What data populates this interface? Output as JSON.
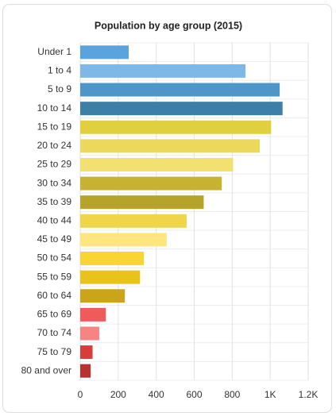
{
  "chart_data": {
    "type": "hbar",
    "title": "Population by age group (2015)",
    "categories": [
      "Under 1",
      "1 to 4",
      "5 to 9",
      "10 to 14",
      "15 to 19",
      "20 to 24",
      "25 to 29",
      "30 to 34",
      "35 to 39",
      "40 to 44",
      "45 to 49",
      "50 to 54",
      "55 to 59",
      "60 to 64",
      "65 to 69",
      "70 to 74",
      "75 to 79",
      "80 and over"
    ],
    "values": [
      255,
      870,
      1050,
      1065,
      1005,
      945,
      805,
      745,
      650,
      560,
      455,
      335,
      315,
      235,
      135,
      100,
      65,
      55
    ],
    "colors": [
      "#5ba3dc",
      "#7db8e6",
      "#4f96c8",
      "#3d7fa6",
      "#e0d040",
      "#ecd95c",
      "#f2e070",
      "#c8b232",
      "#b5a32b",
      "#f0d44a",
      "#fde680",
      "#f8d532",
      "#e9c21c",
      "#caa51a",
      "#ef5a5a",
      "#f78383",
      "#da3b3b",
      "#b83232"
    ],
    "xlim": [
      0,
      1200
    ],
    "xticks": [
      0,
      200,
      400,
      600,
      800,
      {
        "value": 1000,
        "label": "1K"
      },
      {
        "value": 1200,
        "label": "1.2K"
      }
    ],
    "grid": true
  }
}
